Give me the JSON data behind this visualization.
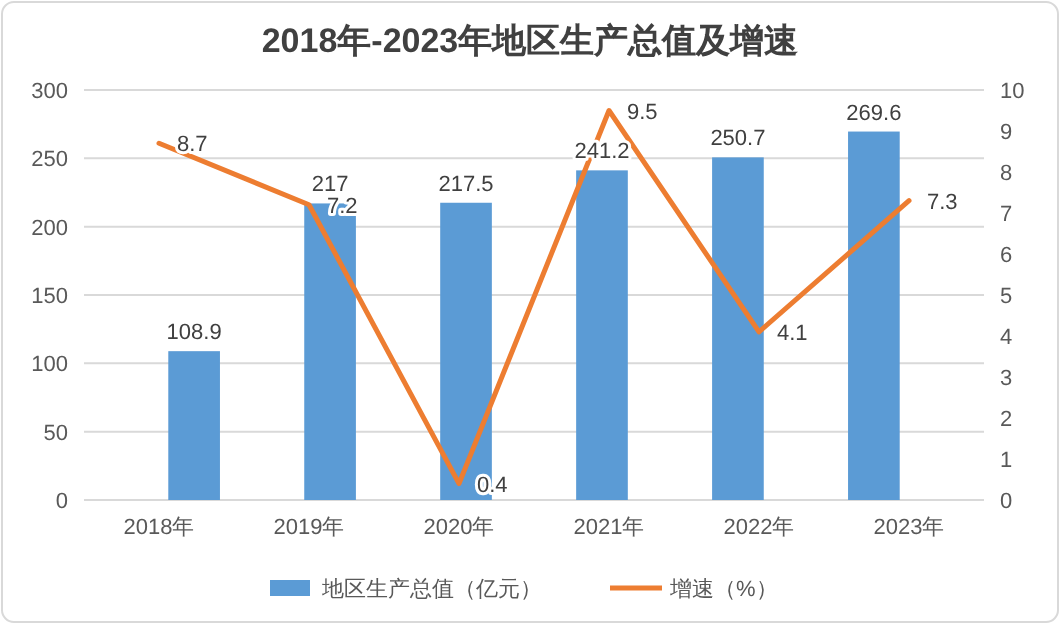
{
  "chart_data": {
    "type": "bar",
    "title": "2018年-2023年地区生产总值及增速",
    "categories": [
      "2018年",
      "2019年",
      "2020年",
      "2021年",
      "2022年",
      "2023年"
    ],
    "series": [
      {
        "name": "地区生产总值（亿元）",
        "color": "#5b9bd5",
        "values": [
          108.9,
          217,
          217.5,
          241.2,
          250.7,
          269.6
        ]
      },
      {
        "name": "增速（%）",
        "type": "line",
        "axis": "y2",
        "color": "#ed7d31",
        "values": [
          8.7,
          7.2,
          0.4,
          9.5,
          4.1,
          7.3
        ]
      }
    ],
    "ylim": [
      0,
      300
    ],
    "yticks": [
      0,
      50,
      100,
      150,
      200,
      250,
      300
    ],
    "y2lim": [
      0,
      10
    ],
    "y2ticks": [
      0,
      1,
      2,
      3,
      4,
      5,
      6,
      7,
      8,
      9,
      10
    ],
    "grid": "y",
    "legend": "bottom",
    "data_labels": true
  }
}
